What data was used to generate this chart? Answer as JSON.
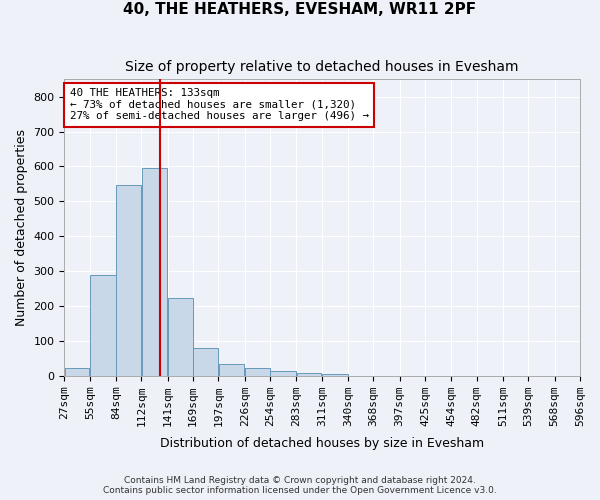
{
  "title": "40, THE HEATHERS, EVESHAM, WR11 2PF",
  "subtitle": "Size of property relative to detached houses in Evesham",
  "xlabel": "Distribution of detached houses by size in Evesham",
  "ylabel": "Number of detached properties",
  "footer_line1": "Contains HM Land Registry data © Crown copyright and database right 2024.",
  "footer_line2": "Contains public sector information licensed under the Open Government Licence v3.0.",
  "bin_labels": [
    "27sqm",
    "55sqm",
    "84sqm",
    "112sqm",
    "141sqm",
    "169sqm",
    "197sqm",
    "226sqm",
    "254sqm",
    "283sqm",
    "311sqm",
    "340sqm",
    "368sqm",
    "397sqm",
    "425sqm",
    "454sqm",
    "482sqm",
    "511sqm",
    "539sqm",
    "568sqm",
    "596sqm"
  ],
  "bar_values": [
    22,
    288,
    547,
    597,
    222,
    78,
    33,
    22,
    12,
    9,
    6,
    0,
    0,
    0,
    0,
    0,
    0,
    0,
    0,
    0
  ],
  "bin_edges": [
    27,
    55,
    84,
    112,
    141,
    169,
    197,
    226,
    254,
    283,
    311,
    340,
    368,
    397,
    425,
    454,
    482,
    511,
    539,
    568,
    596
  ],
  "bar_color": "#c8d8e8",
  "bar_edge_color": "#6699bb",
  "property_size": 133,
  "vline_color": "#cc0000",
  "annotation_text": "40 THE HEATHERS: 133sqm\n← 73% of detached houses are smaller (1,320)\n27% of semi-detached houses are larger (496) →",
  "annotation_box_color": "#cc0000",
  "annotation_text_color": "#000000",
  "ylim": [
    0,
    850
  ],
  "yticks": [
    0,
    100,
    200,
    300,
    400,
    500,
    600,
    700,
    800
  ],
  "bg_color": "#eef2f8",
  "plot_bg_color": "#eef2f8",
  "grid_color": "#ffffff",
  "title_fontsize": 11,
  "subtitle_fontsize": 10,
  "axis_label_fontsize": 9,
  "tick_fontsize": 8
}
